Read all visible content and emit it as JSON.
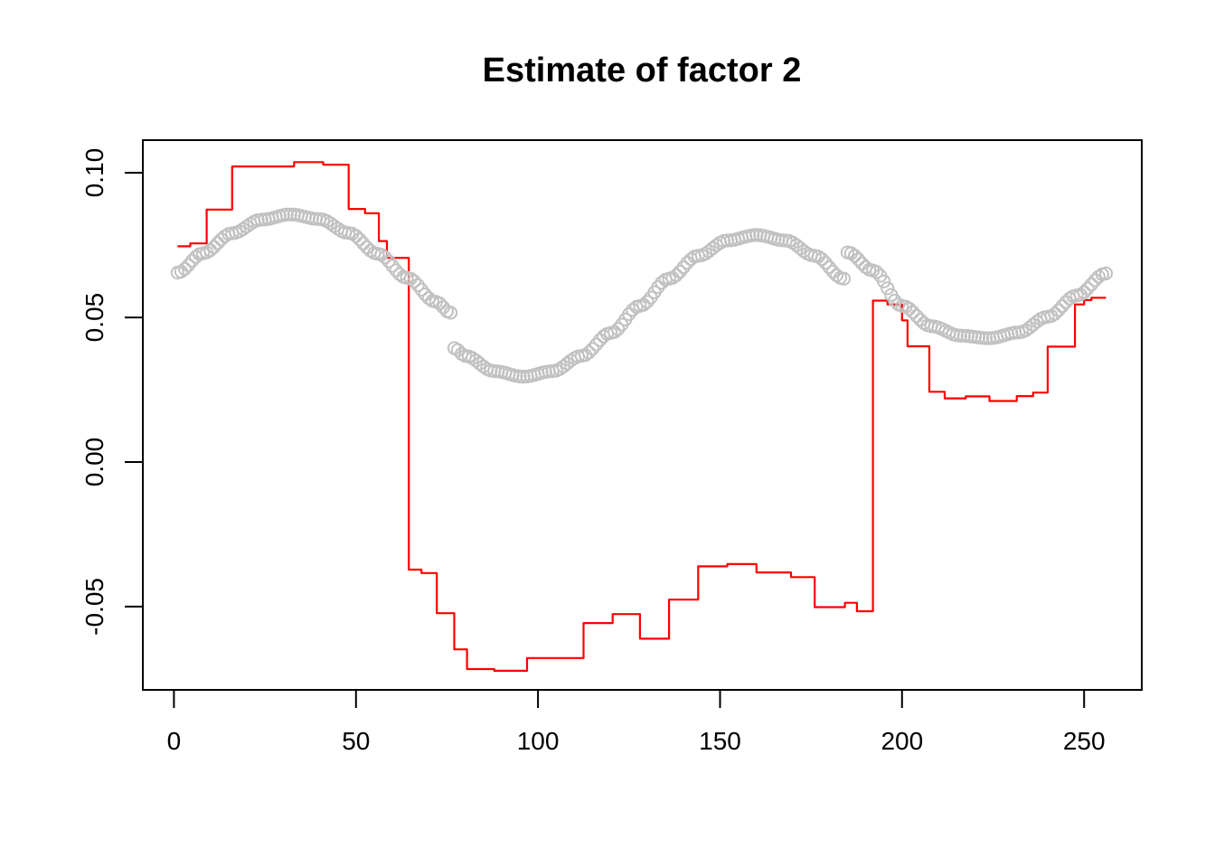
{
  "chart_data": {
    "type": "line+scatter",
    "title": "Estimate of factor 2",
    "xlabel": "",
    "ylabel": "",
    "grid": false,
    "legend": "none",
    "background": "#ffffff",
    "axis_color": "#000000",
    "xlim": [
      -8.54,
      265.84
    ],
    "ylim": [
      -0.0788,
      0.1113
    ],
    "x_tick_values": [
      0,
      50,
      100,
      150,
      200,
      250
    ],
    "x_tick_labels": [
      "0",
      "50",
      "100",
      "150",
      "200",
      "250"
    ],
    "y_tick_values": [
      0.1,
      0.05,
      0.0,
      -0.05
    ],
    "y_tick_labels": [
      "0.10",
      "0.05",
      "0.00",
      "-0.05"
    ],
    "series": [
      {
        "name": "estimated-factor-step-line",
        "type": "step",
        "color": "#ff0000",
        "line_width": 2.2,
        "segments_t0_t1_value": [
          [
            1,
            4.5,
            0.0746
          ],
          [
            4.5,
            9,
            0.0756
          ],
          [
            9,
            16,
            0.0873
          ],
          [
            16,
            33,
            0.1022
          ],
          [
            33,
            41,
            0.1037
          ],
          [
            41,
            48,
            0.1028
          ],
          [
            48,
            52.5,
            0.0875
          ],
          [
            52.5,
            56.3,
            0.086
          ],
          [
            56.3,
            58.5,
            0.0764
          ],
          [
            58.5,
            64.5,
            0.0706
          ],
          [
            64.5,
            68,
            -0.0372
          ],
          [
            68,
            72.2,
            -0.0384
          ],
          [
            72.2,
            77,
            -0.0523
          ],
          [
            77,
            80.5,
            -0.0648
          ],
          [
            80.5,
            88,
            -0.0716
          ],
          [
            88,
            97,
            -0.0722
          ],
          [
            97,
            112.5,
            -0.0678
          ],
          [
            112.5,
            120.5,
            -0.0557
          ],
          [
            120.5,
            128,
            -0.0526
          ],
          [
            128,
            136,
            -0.0611
          ],
          [
            136,
            144,
            -0.0476
          ],
          [
            144,
            152,
            -0.0361
          ],
          [
            152,
            160,
            -0.0353
          ],
          [
            160,
            169.5,
            -0.0382
          ],
          [
            169.5,
            176,
            -0.0398
          ],
          [
            176,
            184.3,
            -0.0502
          ],
          [
            184.3,
            187.6,
            -0.0487
          ],
          [
            187.6,
            192,
            -0.0516
          ],
          [
            192,
            196,
            0.0558
          ],
          [
            196,
            200,
            0.0545
          ],
          [
            200,
            201.5,
            0.049
          ],
          [
            201.5,
            207.5,
            0.04
          ],
          [
            207.5,
            211.7,
            0.0243
          ],
          [
            211.7,
            217.5,
            0.022
          ],
          [
            217.5,
            224,
            0.0227
          ],
          [
            224,
            231.5,
            0.0211
          ],
          [
            231.5,
            236,
            0.0228
          ],
          [
            236,
            240,
            0.024
          ],
          [
            240,
            247.5,
            0.0399
          ],
          [
            247.5,
            250,
            0.0545
          ],
          [
            250,
            252,
            0.056
          ],
          [
            252,
            256,
            0.0568
          ]
        ]
      },
      {
        "name": "true-factor-circles",
        "type": "scatter",
        "marker": "open-circle",
        "color": "#c1c1c1",
        "marker_radius": 6.6,
        "marker_stroke_width": 2,
        "points_every_t": 1,
        "segments": [
          {
            "t_start": 1,
            "t_end": 76,
            "anchors_t_value": [
              [
                1,
                0.0655
              ],
              [
                8,
                0.0722
              ],
              [
                16,
                0.0791
              ],
              [
                24,
                0.0838
              ],
              [
                32,
                0.0856
              ],
              [
                40,
                0.084
              ],
              [
                48,
                0.0792
              ],
              [
                56,
                0.072
              ],
              [
                64,
                0.0637
              ],
              [
                72,
                0.0554
              ],
              [
                76,
                0.0516
              ]
            ]
          },
          {
            "t_start": 77,
            "t_end": 184,
            "anchors_t_value": [
              [
                77,
                0.0394
              ],
              [
                80,
                0.0367
              ],
              [
                88,
                0.0314
              ],
              [
                96,
                0.0295
              ],
              [
                104,
                0.0314
              ],
              [
                112,
                0.0367
              ],
              [
                120,
                0.0446
              ],
              [
                128,
                0.054
              ],
              [
                136,
                0.0634
              ],
              [
                144,
                0.0713
              ],
              [
                152,
                0.0766
              ],
              [
                160,
                0.0785
              ],
              [
                168,
                0.0766
              ],
              [
                176,
                0.0713
              ],
              [
                184,
                0.0634
              ]
            ]
          },
          {
            "t_start": 185,
            "t_end": 256,
            "anchors_t_value": [
              [
                185,
                0.0725
              ],
              [
                192,
                0.0662
              ],
              [
                200,
                0.054
              ],
              [
                208,
                0.047
              ],
              [
                216,
                0.0437
              ],
              [
                224,
                0.0428
              ],
              [
                232,
                0.0448
              ],
              [
                240,
                0.0502
              ],
              [
                248,
                0.0576
              ],
              [
                256,
                0.0652
              ]
            ]
          }
        ]
      }
    ]
  }
}
